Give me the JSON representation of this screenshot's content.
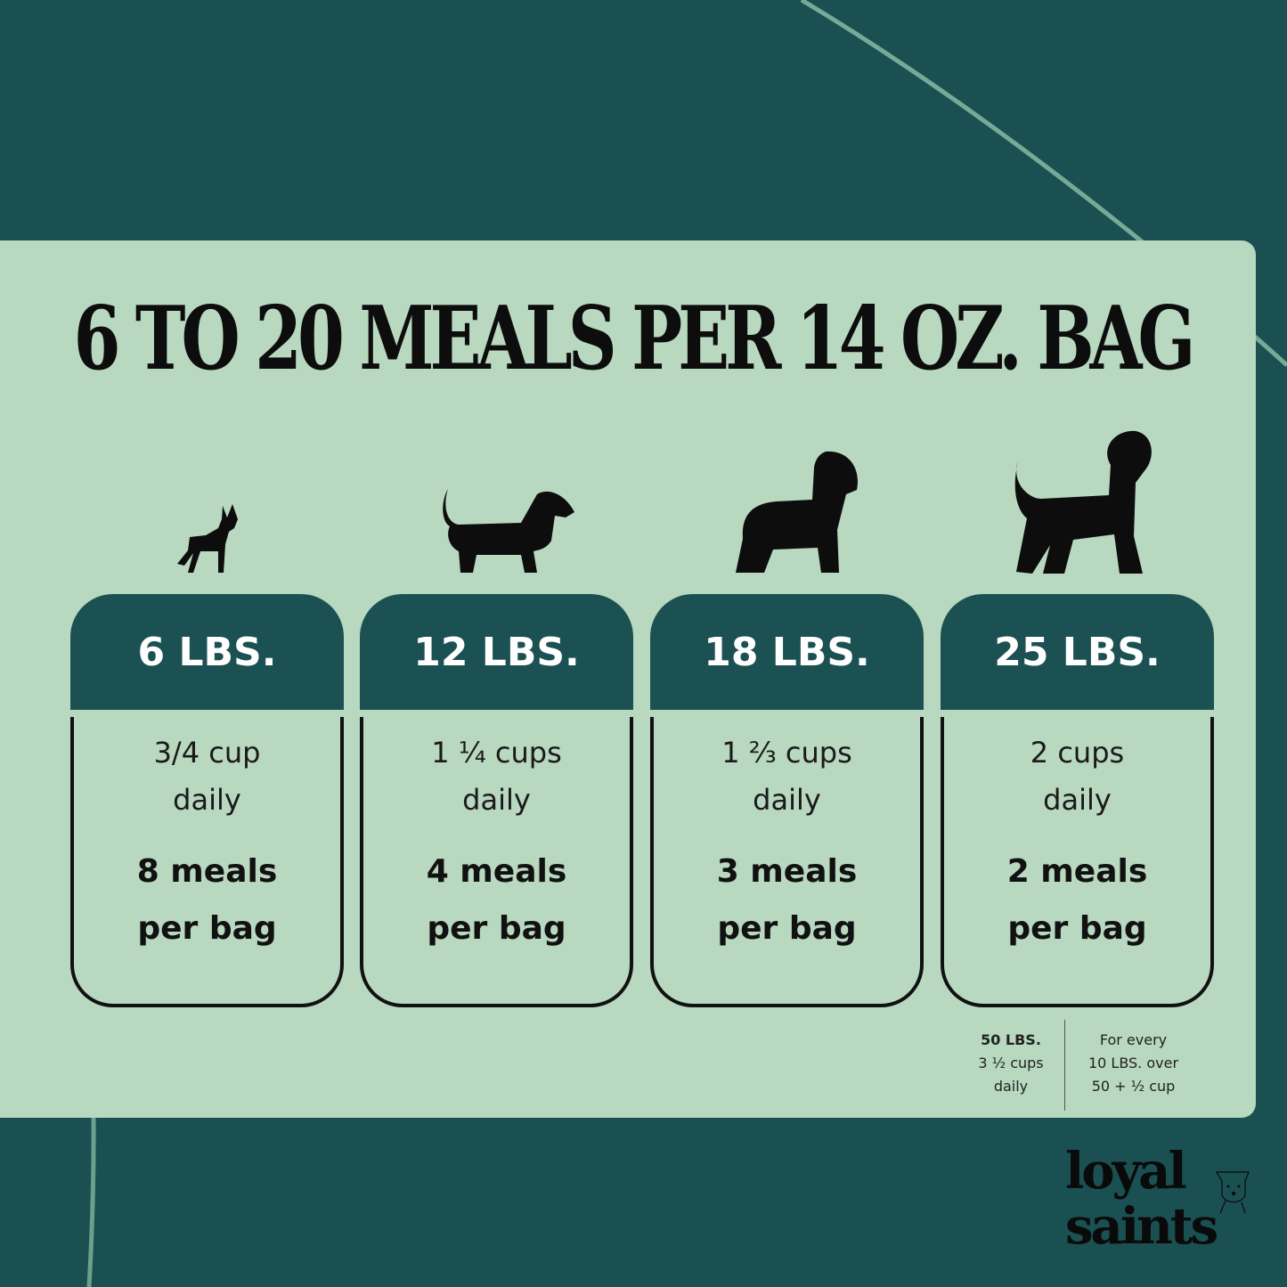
{
  "title": "6 TO 20 MEALS PER 14 OZ. BAG",
  "colors": {
    "background": "#1a5051",
    "panel": "#b8d8bf",
    "card_header": "#1b5152"
  },
  "cards": [
    {
      "weight": "6 LBS.",
      "cups": "3/4 cup",
      "daily": "daily",
      "meals": "8 meals",
      "per_bag": "per bag",
      "icon": "chihuahua-icon"
    },
    {
      "weight": "12 LBS.",
      "cups": "1 ¼ cups",
      "daily": "daily",
      "meals": "4 meals",
      "per_bag": "per bag",
      "icon": "dachshund-icon"
    },
    {
      "weight": "18 LBS.",
      "cups": "1 ⅔ cups",
      "daily": "daily",
      "meals": "3 meals",
      "per_bag": "per bag",
      "icon": "spaniel-icon"
    },
    {
      "weight": "25 LBS.",
      "cups": "2 cups",
      "daily": "daily",
      "meals": "2 meals",
      "per_bag": "per bag",
      "icon": "poodle-icon"
    }
  ],
  "notes": {
    "fifty_weight": "50 LBS.",
    "fifty_cups": "3 ½ cups",
    "fifty_daily": "daily",
    "extra_line1": "For every",
    "extra_line2": "10 LBS. over",
    "extra_line3": "50 + ½ cup"
  },
  "logo": {
    "line1": "loyal",
    "line2": "saints"
  }
}
